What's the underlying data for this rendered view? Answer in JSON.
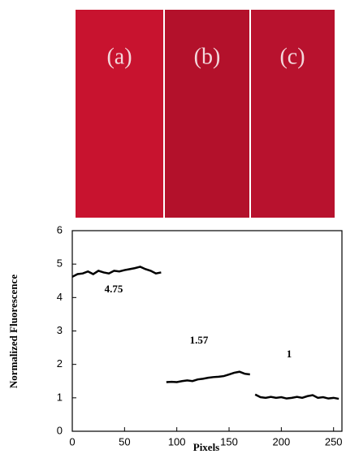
{
  "image": {
    "labels": [
      "(a)",
      "(b)",
      "(c)"
    ],
    "colors": [
      "#c8132f",
      "#b3112b",
      "#b8122e"
    ]
  },
  "chart_data": {
    "type": "line",
    "xlabel": "Pixels",
    "ylabel": "Normalized Fluorescence",
    "x": [
      0,
      5,
      10,
      15,
      20,
      25,
      30,
      35,
      40,
      45,
      50,
      55,
      60,
      65,
      70,
      75,
      80,
      85,
      87,
      90,
      95,
      100,
      105,
      110,
      115,
      120,
      125,
      130,
      135,
      140,
      145,
      150,
      155,
      160,
      165,
      170,
      172,
      175,
      180,
      185,
      190,
      195,
      200,
      205,
      210,
      215,
      220,
      225,
      230,
      235,
      240,
      245,
      250,
      255
    ],
    "series": [
      {
        "color": "#000000",
        "values": [
          4.62,
          4.7,
          4.72,
          4.78,
          4.7,
          4.8,
          4.75,
          4.72,
          4.8,
          4.78,
          4.82,
          4.85,
          4.88,
          4.92,
          4.85,
          4.8,
          4.72,
          4.75,
          null,
          1.47,
          1.48,
          1.47,
          1.5,
          1.52,
          1.5,
          1.55,
          1.57,
          1.6,
          1.62,
          1.63,
          1.65,
          1.7,
          1.75,
          1.78,
          1.72,
          1.7,
          null,
          1.1,
          1.02,
          1.0,
          1.03,
          1.0,
          1.02,
          0.98,
          1.0,
          1.03,
          1.0,
          1.05,
          1.08,
          1.0,
          1.02,
          0.98,
          1.0,
          0.97
        ]
      }
    ],
    "annotations": [
      "4.75",
      "1.57",
      "1"
    ],
    "xlim": [
      0,
      258
    ],
    "ylim": [
      0,
      6
    ],
    "xticks": [
      0,
      50,
      100,
      150,
      200,
      250
    ],
    "yticks": [
      0,
      1,
      2,
      3,
      4,
      5,
      6
    ]
  }
}
